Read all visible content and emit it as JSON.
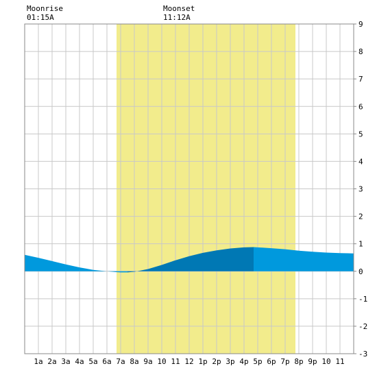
{
  "chart_data": {
    "type": "area",
    "title": "",
    "xlabel": "",
    "ylabel": "",
    "x_range_hours": [
      0,
      24
    ],
    "ylim": [
      -3,
      9
    ],
    "y_ticks": [
      -3,
      -2,
      -1,
      0,
      1,
      2,
      3,
      4,
      5,
      6,
      7,
      8,
      9
    ],
    "x_tick_labels": [
      "1a",
      "2a",
      "3a",
      "4a",
      "5a",
      "6a",
      "7a",
      "8a",
      "9a",
      "10",
      "11",
      "12",
      "1p",
      "2p",
      "3p",
      "4p",
      "5p",
      "6p",
      "7p",
      "8p",
      "9p",
      "10",
      "11"
    ],
    "grid": true,
    "daylight": {
      "start_hour": 6.7,
      "end_hour": 19.75,
      "color": "#f2ec8c"
    },
    "moon_events": [
      {
        "label": "Moonrise",
        "time": "01:15A",
        "hour": 1.25
      },
      {
        "label": "Moonset",
        "time": "11:12A",
        "hour": 11.2
      }
    ],
    "series": [
      {
        "x": [
          0,
          1,
          2,
          3,
          4,
          5,
          6,
          6.7,
          7,
          7.5,
          8,
          9,
          10,
          11,
          12,
          13,
          14,
          15,
          16,
          16.7,
          17,
          18,
          19,
          20,
          21,
          22,
          23,
          24
        ],
        "values": [
          0.6,
          0.49,
          0.37,
          0.25,
          0.14,
          0.05,
          0.0,
          -0.03,
          -0.04,
          -0.04,
          -0.02,
          0.08,
          0.23,
          0.4,
          0.55,
          0.67,
          0.76,
          0.83,
          0.87,
          0.88,
          0.87,
          0.84,
          0.8,
          0.75,
          0.71,
          0.68,
          0.66,
          0.65
        ]
      }
    ],
    "colors": {
      "tide_light": "#0099dd",
      "tide_dark": "#0078b4",
      "grid": "#c8c8c8",
      "frame": "#888888"
    }
  }
}
